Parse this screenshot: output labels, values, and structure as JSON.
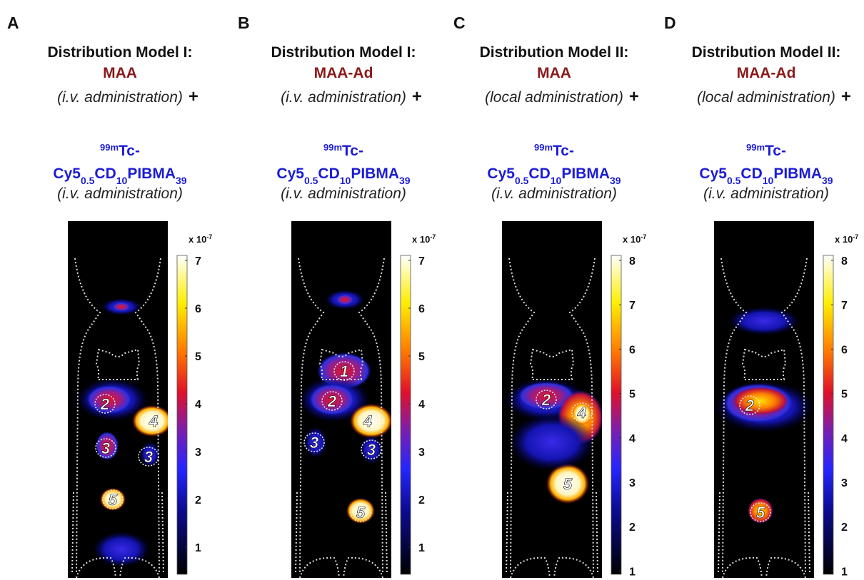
{
  "panels": [
    {
      "letter": "A",
      "title": "Distribution Model I:",
      "agent": "MAA",
      "route": "(i.v. administration)",
      "plus": "+",
      "probe_isotope": "99m",
      "probe_element": "Tc-",
      "probe_name": [
        "Cy5",
        "0.5",
        "CD",
        "10",
        "PIBMA",
        "39"
      ],
      "probe_route": "(i.v. administration)",
      "scale_base": "x 10",
      "scale_exp": "-7",
      "colorbar_ticks": [
        7,
        6,
        5,
        4,
        3,
        2,
        1
      ],
      "regions": [
        "2",
        "4",
        "3",
        "3",
        "5"
      ]
    },
    {
      "letter": "B",
      "title": "Distribution Model I:",
      "agent": "MAA-Ad",
      "route": "(i.v. administration)",
      "plus": "+",
      "probe_isotope": "99m",
      "probe_element": "Tc-",
      "probe_name": [
        "Cy5",
        "0.5",
        "CD",
        "10",
        "PIBMA",
        "39"
      ],
      "probe_route": "(i.v. administration)",
      "scale_base": "x 10",
      "scale_exp": "-7",
      "colorbar_ticks": [
        7,
        6,
        5,
        4,
        3,
        2,
        1
      ],
      "regions": [
        "1",
        "2",
        "4",
        "3",
        "3",
        "5"
      ]
    },
    {
      "letter": "C",
      "title": "Distribution Model II:",
      "agent": "MAA",
      "route": "(local administration)",
      "plus": "+",
      "probe_isotope": "99m",
      "probe_element": "Tc-",
      "probe_name": [
        "Cy5",
        "0.5",
        "CD",
        "10",
        "PIBMA",
        "39"
      ],
      "probe_route": "(i.v. administration)",
      "scale_base": "x 10",
      "scale_exp": "-7",
      "colorbar_ticks": [
        8,
        7,
        6,
        5,
        4,
        3,
        2,
        1
      ],
      "regions": [
        "2",
        "4",
        "5"
      ]
    },
    {
      "letter": "D",
      "title": "Distribution Model II:",
      "agent": "MAA-Ad",
      "route": "(local administration)",
      "plus": "+",
      "probe_isotope": "99m",
      "probe_element": "Tc-",
      "probe_name": [
        "Cy5",
        "0.5",
        "CD",
        "10",
        "PIBMA",
        "39"
      ],
      "probe_route": "(i.v. administration)",
      "scale_base": "x 10",
      "scale_exp": "-7",
      "colorbar_ticks": [
        8,
        7,
        6,
        5,
        4,
        3,
        2,
        1
      ],
      "regions": [
        "2",
        "5"
      ]
    }
  ]
}
